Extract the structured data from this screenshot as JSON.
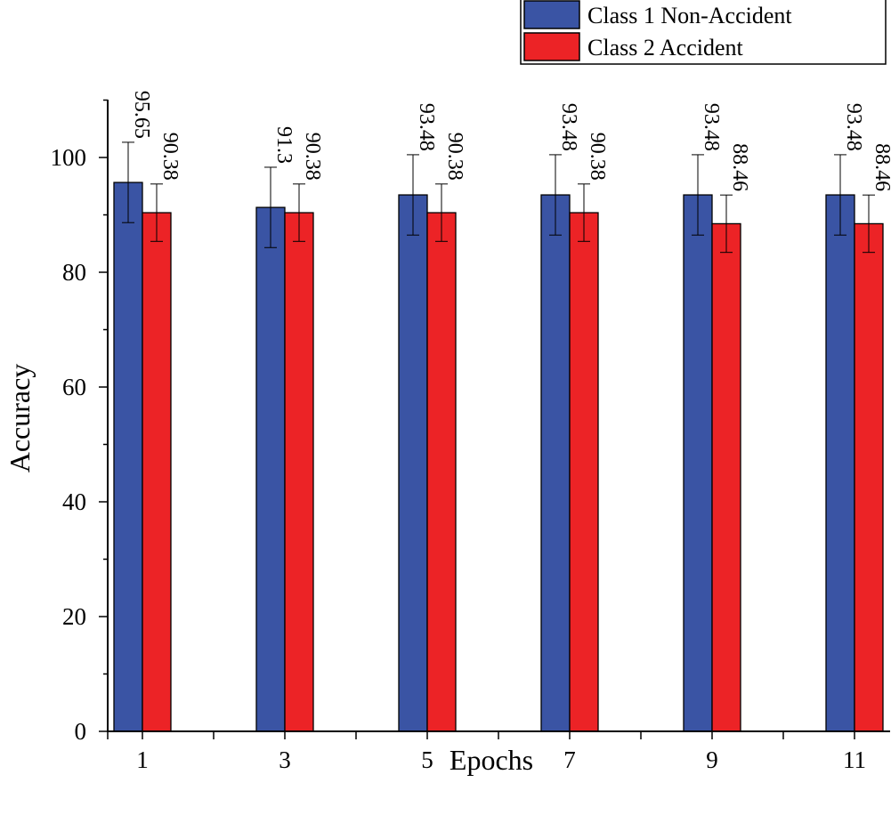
{
  "chart_data": {
    "type": "bar",
    "xlabel": "Epochs",
    "ylabel": "Accuracy",
    "categories": [
      "1",
      "3",
      "5",
      "7",
      "9",
      "11"
    ],
    "ylim": [
      0,
      110
    ],
    "yticks": [
      0,
      20,
      40,
      60,
      80,
      100
    ],
    "yminor_step": 10,
    "series": [
      {
        "name": "Class 1 Non-Accident",
        "color": "#3a54a4",
        "values": [
          95.65,
          91.3,
          93.48,
          93.48,
          93.48,
          93.48
        ],
        "labels": [
          "95.65",
          "91.3",
          "93.48",
          "93.48",
          "93.48",
          "93.48"
        ],
        "errors": [
          7,
          7,
          7,
          7,
          7,
          7
        ]
      },
      {
        "name": "Class 2 Accident",
        "color": "#ec2326",
        "values": [
          90.38,
          90.38,
          90.38,
          90.38,
          88.46,
          88.46
        ],
        "labels": [
          "90.38",
          "90.38",
          "90.38",
          "90.38",
          "88.46",
          "88.46"
        ],
        "errors": [
          5,
          5,
          5,
          5,
          5,
          5
        ]
      }
    ],
    "legend_position": "top-right",
    "grid": false
  }
}
